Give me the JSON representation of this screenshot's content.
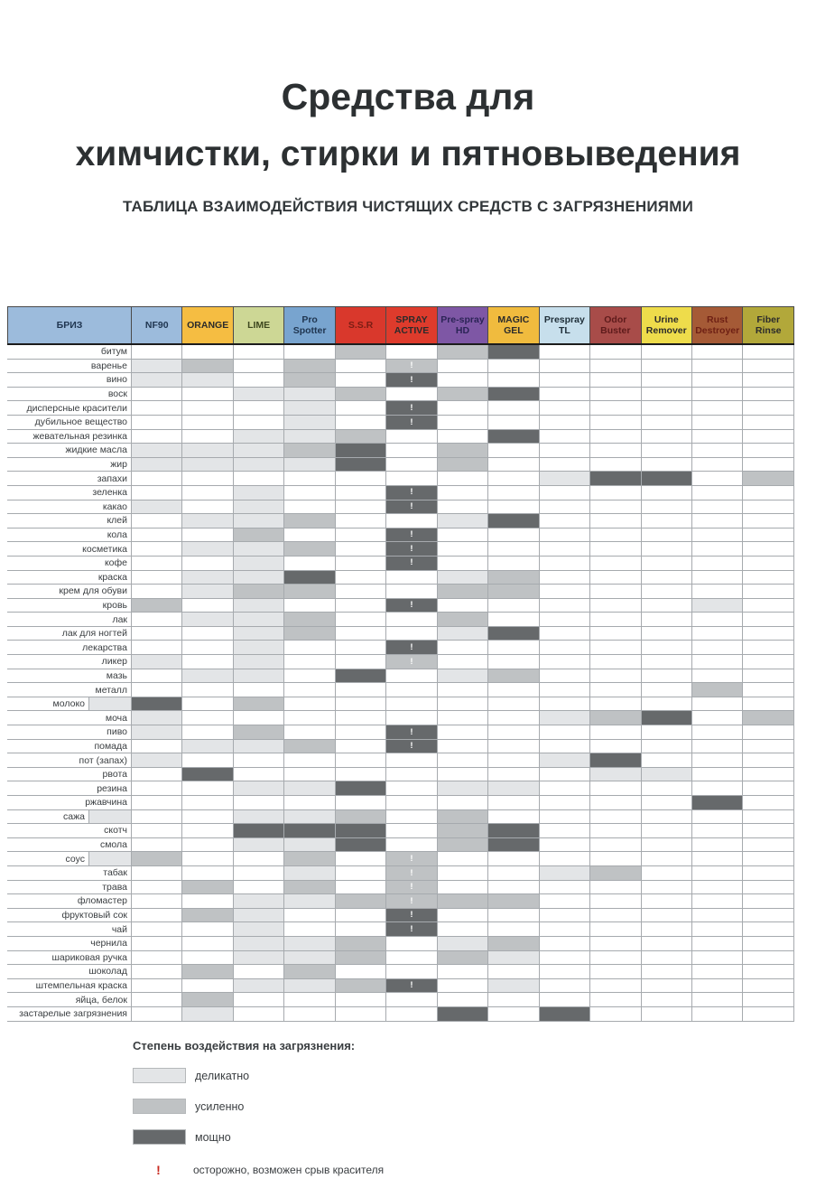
{
  "page": {
    "title_line1": "Средства для",
    "title_line2": "химчистки, стирки и пятновыведения",
    "subtitle": "ТАБЛИЦА ВЗАИМОДЕЙСТВИЯ ЧИСТЯЩИХ СРЕДСТВ С ЗАГРЯЗНЕНИЯМИ"
  },
  "table": {
    "columns": [
      {
        "label": "БРИЗ",
        "bg": "#9cbbdc",
        "fg": "#1f3550"
      },
      {
        "label": "NF90",
        "bg": "#9cbbdc",
        "fg": "#1f3550"
      },
      {
        "label": "ORANGE",
        "bg": "#f5bd42",
        "fg": "#2b2b2b"
      },
      {
        "label": "LIME",
        "bg": "#cdd795",
        "fg": "#3d471e"
      },
      {
        "label": "Pro Spotter",
        "bg": "#78a4cf",
        "fg": "#1f3550"
      },
      {
        "label": "S.S.R",
        "bg": "#d9382c",
        "fg": "#7a1d14"
      },
      {
        "label": "SPRAY ACTIVE",
        "bg": "#de3b2c",
        "fg": "#2b2b2b"
      },
      {
        "label": "Pre-spray HD",
        "bg": "#7e57a5",
        "fg": "#2b2456"
      },
      {
        "label": "MAGIC GEL",
        "bg": "#f0bb3e",
        "fg": "#2b2b2b"
      },
      {
        "label": "Prespray TL",
        "bg": "#c7dfec",
        "fg": "#20303a"
      },
      {
        "label": "Odor Buster",
        "bg": "#a84c49",
        "fg": "#5e1b1b"
      },
      {
        "label": "Urine Remover",
        "bg": "#eedc4b",
        "fg": "#2b2b2b"
      },
      {
        "label": "Rust Destroyer",
        "bg": "#a55a36",
        "fg": "#6e2014"
      },
      {
        "label": "Fiber Rinse",
        "bg": "#b2a83a",
        "fg": "#2b2b2b"
      }
    ],
    "cell_legend_note": "cells: ''=none, 1=деликатно, 2=усиленно, 3=мощно, !=warning",
    "rows": [
      {
        "label": "битум",
        "cells": [
          "",
          "",
          "",
          "",
          "",
          "2",
          "",
          "2",
          "3",
          "",
          "",
          "",
          "",
          ""
        ]
      },
      {
        "label": "варенье",
        "cells": [
          "",
          "1",
          "2",
          "",
          "2",
          "",
          "2!",
          "",
          "",
          "",
          "",
          "",
          "",
          ""
        ]
      },
      {
        "label": "вино",
        "cells": [
          "",
          "1",
          "1",
          "",
          "2",
          "",
          "3!",
          "",
          "",
          "",
          "",
          "",
          "",
          ""
        ]
      },
      {
        "label": "воск",
        "cells": [
          "",
          "",
          "",
          "1",
          "1",
          "2",
          "",
          "2",
          "3",
          "",
          "",
          "",
          "",
          ""
        ]
      },
      {
        "label": "дисперсные красители",
        "cells": [
          "",
          "",
          "",
          "",
          "1",
          "",
          "3!",
          "",
          "",
          "",
          "",
          "",
          "",
          ""
        ]
      },
      {
        "label": "дубильное вещество",
        "cells": [
          "",
          "",
          "",
          "",
          "1",
          "",
          "3!",
          "",
          "",
          "",
          "",
          "",
          "",
          ""
        ]
      },
      {
        "label": "жевательная резинка",
        "cells": [
          "",
          "",
          "",
          "1",
          "1",
          "2",
          "",
          "",
          "3",
          "",
          "",
          "",
          "",
          ""
        ]
      },
      {
        "label": "жидкие масла",
        "cells": [
          "",
          "1",
          "1",
          "1",
          "2",
          "3",
          "",
          "2",
          "",
          "",
          "",
          "",
          "",
          ""
        ]
      },
      {
        "label": "жир",
        "cells": [
          "",
          "1",
          "1",
          "1",
          "1",
          "3",
          "",
          "2",
          "",
          "",
          "",
          "",
          "",
          ""
        ]
      },
      {
        "label": "запахи",
        "cells": [
          "",
          "",
          "",
          "",
          "",
          "",
          "",
          "",
          "",
          "1",
          "3",
          "3",
          "",
          "2"
        ]
      },
      {
        "label": "зеленка",
        "cells": [
          "",
          "",
          "",
          "1",
          "",
          "",
          "3!",
          "",
          "",
          "",
          "",
          "",
          "",
          ""
        ]
      },
      {
        "label": "какао",
        "cells": [
          "",
          "1",
          "",
          "1",
          "",
          "",
          "3!",
          "",
          "",
          "",
          "",
          "",
          "",
          ""
        ]
      },
      {
        "label": "клей",
        "cells": [
          "",
          "",
          "1",
          "1",
          "2",
          "",
          "",
          "1",
          "3",
          "",
          "",
          "",
          "",
          ""
        ]
      },
      {
        "label": "кола",
        "cells": [
          "",
          "",
          "",
          "2",
          "",
          "",
          "3!",
          "",
          "",
          "",
          "",
          "",
          "",
          ""
        ]
      },
      {
        "label": "косметика",
        "cells": [
          "",
          "",
          "1",
          "1",
          "2",
          "",
          "3!",
          "",
          "",
          "",
          "",
          "",
          "",
          ""
        ]
      },
      {
        "label": "кофе",
        "cells": [
          "",
          "",
          "",
          "1",
          "",
          "",
          "3!",
          "",
          "",
          "",
          "",
          "",
          "",
          ""
        ]
      },
      {
        "label": "краска",
        "cells": [
          "",
          "",
          "1",
          "1",
          "3",
          "",
          "",
          "1",
          "2",
          "",
          "",
          "",
          "",
          ""
        ]
      },
      {
        "label": "крем для обуви",
        "cells": [
          "",
          "",
          "1",
          "2",
          "2",
          "",
          "",
          "2",
          "2",
          "",
          "",
          "",
          "",
          ""
        ]
      },
      {
        "label": "кровь",
        "cells": [
          "",
          "2",
          "",
          "1",
          "",
          "",
          "3!",
          "",
          "",
          "",
          "",
          "",
          "1",
          ""
        ]
      },
      {
        "label": "лак",
        "cells": [
          "",
          "",
          "1",
          "1",
          "2",
          "",
          "",
          "2",
          "",
          "",
          "",
          "",
          "",
          ""
        ]
      },
      {
        "label": "лак для ногтей",
        "cells": [
          "",
          "",
          "",
          "1",
          "2",
          "",
          "",
          "1",
          "3",
          "",
          "",
          "",
          "",
          ""
        ]
      },
      {
        "label": "лекарства",
        "cells": [
          "",
          "",
          "",
          "1",
          "",
          "",
          "3!",
          "",
          "",
          "",
          "",
          "",
          "",
          ""
        ]
      },
      {
        "label": "ликер",
        "cells": [
          "",
          "1",
          "",
          "1",
          "",
          "",
          "2!",
          "",
          "",
          "",
          "",
          "",
          "",
          ""
        ]
      },
      {
        "label": "мазь",
        "cells": [
          "",
          "",
          "1",
          "1",
          "",
          "3",
          "",
          "1",
          "2",
          "",
          "",
          "",
          "",
          ""
        ]
      },
      {
        "label": "металл",
        "cells": [
          "",
          "",
          "",
          "",
          "",
          "",
          "",
          "",
          "",
          "",
          "",
          "",
          "2",
          ""
        ]
      },
      {
        "label": "молоко",
        "cells": [
          "1",
          "3",
          "",
          "2",
          "",
          "",
          "",
          "",
          "",
          "",
          "",
          "",
          "",
          ""
        ]
      },
      {
        "label": "моча",
        "cells": [
          "",
          "1",
          "",
          "",
          "",
          "",
          "",
          "",
          "",
          "1",
          "2",
          "3",
          "",
          "2"
        ]
      },
      {
        "label": "пиво",
        "cells": [
          "",
          "1",
          "",
          "2",
          "",
          "",
          "3!",
          "",
          "",
          "",
          "",
          "",
          "",
          ""
        ]
      },
      {
        "label": "помада",
        "cells": [
          "",
          "",
          "1",
          "1",
          "2",
          "",
          "3!",
          "",
          "",
          "",
          "",
          "",
          "",
          ""
        ]
      },
      {
        "label": "пот (запах)",
        "cells": [
          "",
          "1",
          "",
          "",
          "",
          "",
          "",
          "",
          "",
          "1",
          "3",
          "",
          "",
          ""
        ]
      },
      {
        "label": "рвота",
        "cells": [
          "",
          "",
          "3",
          "",
          "",
          "",
          "",
          "",
          "",
          "",
          "1",
          "1",
          "",
          ""
        ]
      },
      {
        "label": "резина",
        "cells": [
          "",
          "",
          "",
          "1",
          "1",
          "3",
          "",
          "1",
          "1",
          "",
          "",
          "",
          "",
          ""
        ]
      },
      {
        "label": "ржавчина",
        "cells": [
          "",
          "",
          "",
          "",
          "",
          "",
          "",
          "",
          "",
          "",
          "",
          "",
          "3",
          ""
        ]
      },
      {
        "label": "сажа",
        "cells": [
          "1",
          "",
          "",
          "1",
          "1",
          "2",
          "",
          "2",
          "",
          "",
          "",
          "",
          "",
          ""
        ]
      },
      {
        "label": "скотч",
        "cells": [
          "",
          "",
          "",
          "3",
          "3",
          "3",
          "",
          "2",
          "3",
          "",
          "",
          "",
          "",
          ""
        ]
      },
      {
        "label": "смола",
        "cells": [
          "",
          "",
          "",
          "1",
          "1",
          "3",
          "",
          "2",
          "3",
          "",
          "",
          "",
          "",
          ""
        ]
      },
      {
        "label": "соус",
        "cells": [
          "1",
          "2",
          "",
          "",
          "2",
          "",
          "2!",
          "",
          "",
          "",
          "",
          "",
          "",
          ""
        ]
      },
      {
        "label": "табак",
        "cells": [
          "",
          "",
          "",
          "",
          "1",
          "",
          "2!",
          "",
          "",
          "1",
          "2",
          "",
          "",
          ""
        ]
      },
      {
        "label": "трава",
        "cells": [
          "",
          "",
          "2",
          "",
          "2",
          "",
          "2!",
          "",
          "",
          "",
          "",
          "",
          "",
          ""
        ]
      },
      {
        "label": "фломастер",
        "cells": [
          "",
          "",
          "",
          "1",
          "1",
          "2",
          "2!",
          "2",
          "2",
          "",
          "",
          "",
          "",
          ""
        ]
      },
      {
        "label": "фруктовый сок",
        "cells": [
          "",
          "",
          "2",
          "1",
          "",
          "",
          "3!",
          "",
          "",
          "",
          "",
          "",
          "",
          ""
        ]
      },
      {
        "label": "чай",
        "cells": [
          "",
          "",
          "",
          "1",
          "",
          "",
          "3!",
          "",
          "",
          "",
          "",
          "",
          "",
          ""
        ]
      },
      {
        "label": "чернила",
        "cells": [
          "",
          "",
          "",
          "1",
          "1",
          "2",
          "",
          "1",
          "2",
          "",
          "",
          "",
          "",
          ""
        ]
      },
      {
        "label": "шариковая ручка",
        "cells": [
          "",
          "",
          "",
          "1",
          "1",
          "2",
          "",
          "2",
          "1",
          "",
          "",
          "",
          "",
          ""
        ]
      },
      {
        "label": "шоколад",
        "cells": [
          "",
          "",
          "2",
          "",
          "2",
          "",
          "",
          "",
          "",
          "",
          "",
          "",
          "",
          ""
        ]
      },
      {
        "label": "штемпельная краска",
        "cells": [
          "",
          "",
          "",
          "1",
          "1",
          "2",
          "3!",
          "",
          "1",
          "",
          "",
          "",
          "",
          ""
        ]
      },
      {
        "label": "яйца, белок",
        "cells": [
          "",
          "",
          "2",
          "",
          "",
          "",
          "",
          "",
          "",
          "",
          "",
          "",
          "",
          ""
        ]
      },
      {
        "label": "застарелые загрязнения",
        "cells": [
          "",
          "",
          "1",
          "",
          "",
          "",
          "",
          "3",
          "",
          "3",
          "",
          "",
          "",
          ""
        ]
      }
    ]
  },
  "legend": {
    "title": "Степень воздействия на загрязнения:",
    "levels": [
      {
        "code": "1",
        "label": "деликатно",
        "color": "#e3e5e7"
      },
      {
        "code": "2",
        "label": "усиленно",
        "color": "#bfc2c4"
      },
      {
        "code": "3",
        "label": "мощно",
        "color": "#66696b"
      }
    ],
    "warning_symbol": "!",
    "warning_text": "осторожно, возможен срыв красителя",
    "warning_color": "#c8281e"
  }
}
